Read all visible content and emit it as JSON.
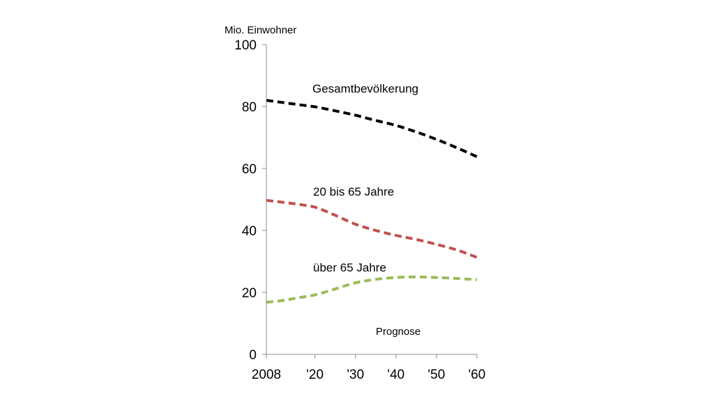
{
  "chart_data": {
    "type": "line",
    "ylabel": "Mio. Einwohner",
    "x_tick_labels": [
      "2008",
      "'20",
      "'30",
      "'40",
      "'50",
      "'60"
    ],
    "x_ticks": [
      2008,
      2020,
      2030,
      2040,
      2050,
      2060
    ],
    "xlim": [
      2008,
      2060
    ],
    "y_ticks": [
      0,
      20,
      40,
      60,
      80,
      100
    ],
    "ylim": [
      0,
      100
    ],
    "grid": false,
    "annotation": "Prognose",
    "series": [
      {
        "name": "Gesamtbevölkerung",
        "color": "#000000",
        "line_style": "dashed",
        "x": [
          2008,
          2012,
          2016,
          2020,
          2025,
          2030,
          2035,
          2040,
          2045,
          2050,
          2055,
          2060
        ],
        "y": [
          82,
          81.3,
          80.6,
          79.9,
          78.6,
          77.2,
          75.5,
          73.9,
          71.8,
          69.4,
          66.7,
          63.8
        ]
      },
      {
        "name": "20 bis 65 Jahre",
        "color": "#c0504d",
        "line_style": "dashed",
        "x": [
          2008,
          2012,
          2016,
          2020,
          2025,
          2030,
          2035,
          2040,
          2045,
          2050,
          2055,
          2060
        ],
        "y": [
          49.7,
          49.1,
          48.4,
          47.5,
          44.9,
          42,
          40,
          38.4,
          37.1,
          35.5,
          33.7,
          31.3
        ]
      },
      {
        "name": "über 65 Jahre",
        "color": "#9bbb59",
        "line_style": "dashed",
        "x": [
          2008,
          2012,
          2016,
          2020,
          2025,
          2030,
          2035,
          2040,
          2045,
          2050,
          2055,
          2060
        ],
        "y": [
          16.8,
          17.4,
          18.3,
          19.2,
          21.1,
          23.1,
          24.2,
          24.8,
          25,
          24.8,
          24.5,
          24.1
        ]
      }
    ]
  }
}
